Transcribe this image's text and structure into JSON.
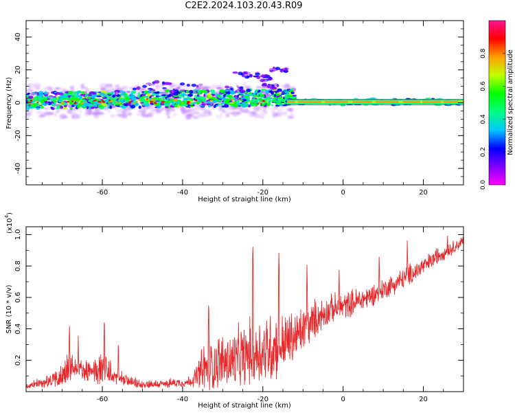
{
  "figure": {
    "title": "C2E2.2024.103.20.43.R09"
  },
  "colors": {
    "frame": "#000000",
    "snr_line": "#e8282a",
    "colormap": [
      "#ffffff",
      "#e6c8ff",
      "#c080ff",
      "#8000ff",
      "#0000ff",
      "#00c8ff",
      "#00ff80",
      "#00ff00",
      "#c0ff00",
      "#ffa000",
      "#ff0000",
      "#ff1493"
    ]
  },
  "chart_data": [
    {
      "type": "heatmap",
      "name": "spectrogram",
      "xlabel": "Height of straight line (km)",
      "ylabel": "Frequency (Hz)",
      "xlim": [
        -79,
        30
      ],
      "ylim": [
        -50,
        50
      ],
      "xticks": [
        -60,
        -40,
        -20,
        0,
        20
      ],
      "yticks": [
        -40,
        -20,
        0,
        20,
        40
      ],
      "colorbar": {
        "label": "Normalized spectral amplitude",
        "range": [
          0,
          1
        ],
        "ticks": [
          "0.0",
          "0.2",
          "0.4",
          "0.6",
          "0.8"
        ]
      }
    },
    {
      "type": "line",
      "name": "snr",
      "xlabel": "Height of straight line (km)",
      "ylabel": "SNR (10 * v/v)",
      "multiplier": "(x10",
      "multiplier_exp": "4",
      "xlim": [
        -79,
        30
      ],
      "ylim": [
        0,
        1.05
      ],
      "xticks": [
        -60,
        -40,
        -20,
        0,
        20
      ],
      "yticks": [
        0.2,
        0.4,
        0.6,
        0.8,
        1.0
      ],
      "ytick_labels": [
        "0.2",
        "0.4",
        "0.6",
        "0.8",
        "1.0"
      ],
      "envelope": {
        "x": [
          -79,
          -74,
          -71,
          -68,
          -66,
          -63,
          -60,
          -57,
          -54,
          -51,
          -48,
          -45,
          -42,
          -39,
          -37,
          -35,
          -33,
          -30,
          -27,
          -24,
          -22,
          -20,
          -18,
          -15,
          -12,
          -9,
          -6,
          -3,
          0,
          3,
          6,
          9,
          12,
          15,
          18,
          21,
          24,
          27,
          30
        ],
        "base": [
          0.03,
          0.05,
          0.07,
          0.12,
          0.14,
          0.1,
          0.12,
          0.08,
          0.06,
          0.04,
          0.04,
          0.04,
          0.05,
          0.05,
          0.07,
          0.1,
          0.12,
          0.15,
          0.15,
          0.18,
          0.2,
          0.2,
          0.22,
          0.26,
          0.3,
          0.38,
          0.45,
          0.5,
          0.52,
          0.55,
          0.58,
          0.62,
          0.66,
          0.7,
          0.75,
          0.8,
          0.86,
          0.9,
          0.95
        ],
        "amp": [
          0.03,
          0.07,
          0.12,
          0.22,
          0.1,
          0.12,
          0.22,
          0.1,
          0.06,
          0.05,
          0.05,
          0.05,
          0.05,
          0.05,
          0.1,
          0.28,
          0.3,
          0.32,
          0.34,
          0.36,
          0.4,
          0.4,
          0.45,
          0.35,
          0.3,
          0.25,
          0.2,
          0.16,
          0.16,
          0.15,
          0.14,
          0.12,
          0.12,
          0.12,
          0.12,
          0.1,
          0.1,
          0.08,
          0.06
        ]
      },
      "peaks": [
        {
          "x": -68.2,
          "y": 0.46
        },
        {
          "x": -66.0,
          "y": 0.36
        },
        {
          "x": -59.5,
          "y": 0.51
        },
        {
          "x": -56.0,
          "y": 0.36
        },
        {
          "x": -33.5,
          "y": 0.61
        },
        {
          "x": -22.5,
          "y": 0.97
        },
        {
          "x": -16.0,
          "y": 0.91
        },
        {
          "x": -9.0,
          "y": 0.82
        },
        {
          "x": -1.0,
          "y": 0.8
        },
        {
          "x": 9.0,
          "y": 0.9
        },
        {
          "x": 16.0,
          "y": 0.99
        },
        {
          "x": 26.0,
          "y": 1.05
        }
      ]
    }
  ]
}
